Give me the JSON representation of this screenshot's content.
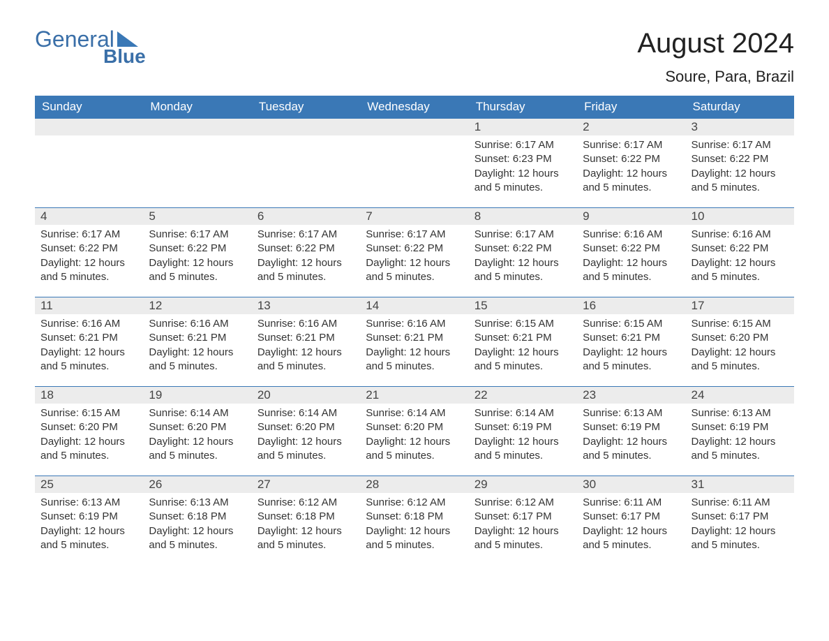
{
  "brand": {
    "line1": "General",
    "line2": "Blue",
    "accent": "#3a78b6"
  },
  "title": "August 2024",
  "location": "Soure, Para, Brazil",
  "weekdays": [
    "Sunday",
    "Monday",
    "Tuesday",
    "Wednesday",
    "Thursday",
    "Friday",
    "Saturday"
  ],
  "colors": {
    "header_bg": "#3a78b6",
    "header_text": "#ffffff",
    "daynum_bg": "#ececec",
    "daynum_border": "#3a78b6",
    "text": "#333333",
    "page_bg": "#ffffff"
  },
  "typography": {
    "title_fontsize": 40,
    "location_fontsize": 22,
    "header_fontsize": 17,
    "daynum_fontsize": 17,
    "body_fontsize": 15
  },
  "layout": {
    "columns": 7,
    "rows": 5,
    "first_day_column": 4
  },
  "daylight_text": "Daylight: 12 hours and 5 minutes.",
  "days": [
    {
      "n": "1",
      "sunrise": "6:17 AM",
      "sunset": "6:23 PM"
    },
    {
      "n": "2",
      "sunrise": "6:17 AM",
      "sunset": "6:22 PM"
    },
    {
      "n": "3",
      "sunrise": "6:17 AM",
      "sunset": "6:22 PM"
    },
    {
      "n": "4",
      "sunrise": "6:17 AM",
      "sunset": "6:22 PM"
    },
    {
      "n": "5",
      "sunrise": "6:17 AM",
      "sunset": "6:22 PM"
    },
    {
      "n": "6",
      "sunrise": "6:17 AM",
      "sunset": "6:22 PM"
    },
    {
      "n": "7",
      "sunrise": "6:17 AM",
      "sunset": "6:22 PM"
    },
    {
      "n": "8",
      "sunrise": "6:17 AM",
      "sunset": "6:22 PM"
    },
    {
      "n": "9",
      "sunrise": "6:16 AM",
      "sunset": "6:22 PM"
    },
    {
      "n": "10",
      "sunrise": "6:16 AM",
      "sunset": "6:22 PM"
    },
    {
      "n": "11",
      "sunrise": "6:16 AM",
      "sunset": "6:21 PM"
    },
    {
      "n": "12",
      "sunrise": "6:16 AM",
      "sunset": "6:21 PM"
    },
    {
      "n": "13",
      "sunrise": "6:16 AM",
      "sunset": "6:21 PM"
    },
    {
      "n": "14",
      "sunrise": "6:16 AM",
      "sunset": "6:21 PM"
    },
    {
      "n": "15",
      "sunrise": "6:15 AM",
      "sunset": "6:21 PM"
    },
    {
      "n": "16",
      "sunrise": "6:15 AM",
      "sunset": "6:21 PM"
    },
    {
      "n": "17",
      "sunrise": "6:15 AM",
      "sunset": "6:20 PM"
    },
    {
      "n": "18",
      "sunrise": "6:15 AM",
      "sunset": "6:20 PM"
    },
    {
      "n": "19",
      "sunrise": "6:14 AM",
      "sunset": "6:20 PM"
    },
    {
      "n": "20",
      "sunrise": "6:14 AM",
      "sunset": "6:20 PM"
    },
    {
      "n": "21",
      "sunrise": "6:14 AM",
      "sunset": "6:20 PM"
    },
    {
      "n": "22",
      "sunrise": "6:14 AM",
      "sunset": "6:19 PM"
    },
    {
      "n": "23",
      "sunrise": "6:13 AM",
      "sunset": "6:19 PM"
    },
    {
      "n": "24",
      "sunrise": "6:13 AM",
      "sunset": "6:19 PM"
    },
    {
      "n": "25",
      "sunrise": "6:13 AM",
      "sunset": "6:19 PM"
    },
    {
      "n": "26",
      "sunrise": "6:13 AM",
      "sunset": "6:18 PM"
    },
    {
      "n": "27",
      "sunrise": "6:12 AM",
      "sunset": "6:18 PM"
    },
    {
      "n": "28",
      "sunrise": "6:12 AM",
      "sunset": "6:18 PM"
    },
    {
      "n": "29",
      "sunrise": "6:12 AM",
      "sunset": "6:17 PM"
    },
    {
      "n": "30",
      "sunrise": "6:11 AM",
      "sunset": "6:17 PM"
    },
    {
      "n": "31",
      "sunrise": "6:11 AM",
      "sunset": "6:17 PM"
    }
  ]
}
